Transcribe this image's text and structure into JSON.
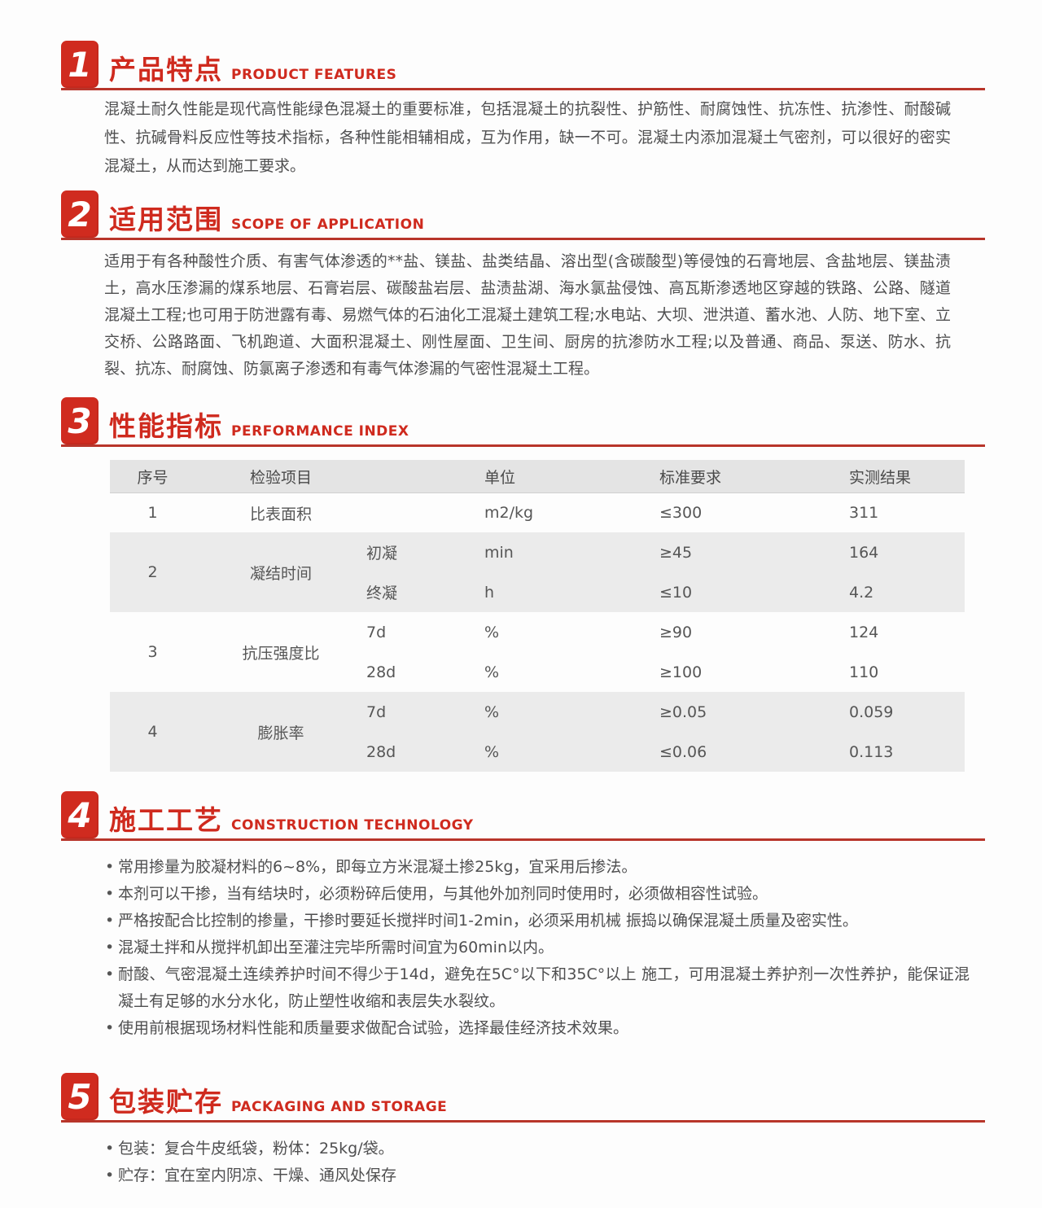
{
  "colors": {
    "accent": "#cf2a1e",
    "table_shade": "#ebebeb",
    "header_shade": "#e4e4e4"
  },
  "sections": [
    {
      "num": "1",
      "zh": "产品特点",
      "en": "PRODUCT FEATURES",
      "para": "混凝土耐久性能是现代高性能绿色混凝土的重要标准，包括混凝土的抗裂性、护筋性、耐腐蚀性、抗冻性、抗渗性、耐酸碱性、抗碱骨料反应性等技术指标，各种性能相辅相成，互为作用，缺一不可。混凝土内添加混凝土气密剂，可以很好的密实混凝土，从而达到施工要求。"
    },
    {
      "num": "2",
      "zh": "适用范围",
      "en": "SCOPE OF APPLICATION",
      "para": "适用于有各种酸性介质、有害气体渗透的**盐、镁盐、盐类结晶、溶出型(含碳酸型)等侵蚀的石膏地层、含盐地层、镁盐渍土，高水压渗漏的煤系地层、石膏岩层、碳酸盐岩层、盐渍盐湖、海水氯盐侵蚀、高瓦斯渗透地区穿越的铁路、公路、隧道混凝土工程;也可用于防泄露有毒、易燃气体的石油化工混凝土建筑工程;水电站、大坝、泄洪道、蓄水池、人防、地下室、立交桥、公路路面、飞机跑道、大面积混凝土、刚性屋面、卫生间、厨房的抗渗防水工程;以及普通、商品、泵送、防水、抗裂、抗冻、耐腐蚀、防氯离子渗透和有毒气体渗漏的气密性混凝土工程。"
    },
    {
      "num": "3",
      "zh": "性能指标",
      "en": "PERFORMANCE INDEX",
      "table": {
        "headers": {
          "no": "序号",
          "item": "检验项目",
          "unit": "单位",
          "standard": "标准要求",
          "result": "实测结果"
        },
        "groups": [
          {
            "no": "1",
            "item": "比表面积",
            "entries": [
              {
                "sub": "",
                "unit": "m2/kg",
                "standard": "≤300",
                "result": "311"
              }
            ]
          },
          {
            "no": "2",
            "item": "凝结时间",
            "entries": [
              {
                "sub": "初凝",
                "unit": "min",
                "standard": "≥45",
                "result": "164"
              },
              {
                "sub": "终凝",
                "unit": "h",
                "standard": "≤10",
                "result": "4.2"
              }
            ]
          },
          {
            "no": "3",
            "item": "抗压强度比",
            "entries": [
              {
                "sub": "7d",
                "unit": "%",
                "standard": "≥90",
                "result": "124"
              },
              {
                "sub": "28d",
                "unit": "%",
                "standard": "≥100",
                "result": "110"
              }
            ]
          },
          {
            "no": "4",
            "item": "膨胀率",
            "entries": [
              {
                "sub": "7d",
                "unit": "%",
                "standard": "≥0.05",
                "result": "0.059"
              },
              {
                "sub": "28d",
                "unit": "%",
                "standard": "≤0.06",
                "result": "0.113"
              }
            ]
          }
        ]
      }
    },
    {
      "num": "4",
      "zh": "施工工艺",
      "en": "CONSTRUCTION TECHNOLOGY",
      "bullets": [
        "常用掺量为胶凝材料的6~8%，即每立方米混凝土掺25kg，宜采用后掺法。",
        "本剂可以干掺，当有结块时，必须粉碎后使用，与其他外加剂同时使用时，必须做相容性试验。",
        "严格按配合比控制的掺量，干掺时要延长搅拌时间1-2min，必须采用机械 振捣以确保混凝土质量及密实性。",
        "混凝土拌和从搅拌机卸出至灌注完毕所需时间宜为60min以内。",
        "耐酸、气密混凝土连续养护时间不得少于14d，避免在5C°以下和35C°以上 施工，可用混凝土养护剂一次性养护，能保证混凝土有足够的水分水化，防止塑性收缩和表层失水裂纹。",
        "使用前根据现场材料性能和质量要求做配合试验，选择最佳经济技术效果。"
      ]
    },
    {
      "num": "5",
      "zh": "包装贮存",
      "en": "PACKAGING AND STORAGE",
      "bullets": [
        "包装：复合牛皮纸袋，粉体：25kg/袋。",
        "贮存：宜在室内阴凉、干燥、通风处保存"
      ]
    }
  ]
}
